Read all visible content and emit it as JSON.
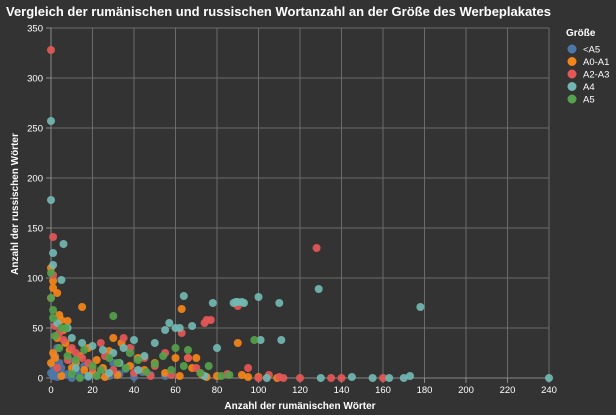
{
  "chart_data": {
    "type": "scatter",
    "title": "Vergleich der rumänischen und russischen Wortanzahl an der Größe des Werbeplakates",
    "xlabel": "Anzahl der rumänischen Wörter",
    "ylabel": "Anzahl der russischen Wörter",
    "xlim": [
      0,
      240
    ],
    "ylim": [
      0,
      350
    ],
    "x_ticks": [
      0,
      20,
      40,
      60,
      80,
      100,
      120,
      140,
      160,
      180,
      200,
      220,
      240
    ],
    "y_ticks": [
      0,
      50,
      100,
      150,
      200,
      250,
      300,
      350
    ],
    "grid": true,
    "legend": {
      "title": "Größe",
      "placement": "top-right",
      "entries": [
        {
          "name": "<A5",
          "color": "#4c78a8"
        },
        {
          "name": "A0-A1",
          "color": "#f58518"
        },
        {
          "name": "A2-A3",
          "color": "#e45756"
        },
        {
          "name": "A4",
          "color": "#72b7b2"
        },
        {
          "name": "A5",
          "color": "#54a24b"
        }
      ]
    },
    "series": [
      {
        "name": "<A5",
        "color": "#4c78a8",
        "points": [
          [
            1,
            2
          ],
          [
            2,
            6
          ],
          [
            3,
            1
          ],
          [
            5,
            10
          ],
          [
            6,
            3
          ],
          [
            8,
            4
          ],
          [
            10,
            0
          ],
          [
            12,
            7
          ],
          [
            14,
            2
          ],
          [
            16,
            12
          ],
          [
            18,
            1
          ],
          [
            20,
            5
          ],
          [
            22,
            3
          ],
          [
            25,
            8
          ],
          [
            28,
            2
          ],
          [
            30,
            15
          ],
          [
            33,
            4
          ],
          [
            36,
            9
          ],
          [
            40,
            1
          ],
          [
            44,
            6
          ],
          [
            48,
            3
          ],
          [
            55,
            2
          ],
          [
            2,
            22
          ],
          [
            4,
            15
          ],
          [
            9,
            18
          ],
          [
            1,
            12
          ],
          [
            0,
            5
          ],
          [
            3,
            30
          ]
        ]
      },
      {
        "name": "A0-A1",
        "color": "#f58518",
        "points": [
          [
            0,
            110
          ],
          [
            1,
            97
          ],
          [
            1,
            90
          ],
          [
            3,
            85
          ],
          [
            4,
            63
          ],
          [
            5,
            58
          ],
          [
            8,
            57
          ],
          [
            15,
            71
          ],
          [
            6,
            48
          ],
          [
            3,
            40
          ],
          [
            7,
            35
          ],
          [
            1,
            25
          ],
          [
            2,
            20
          ],
          [
            9,
            28
          ],
          [
            12,
            15
          ],
          [
            14,
            22
          ],
          [
            18,
            30
          ],
          [
            20,
            5
          ],
          [
            22,
            18
          ],
          [
            25,
            10
          ],
          [
            28,
            27
          ],
          [
            32,
            3
          ],
          [
            34,
            35
          ],
          [
            38,
            12
          ],
          [
            42,
            20
          ],
          [
            45,
            8
          ],
          [
            50,
            15
          ],
          [
            55,
            5
          ],
          [
            60,
            20
          ],
          [
            62,
            2
          ],
          [
            63,
            69
          ],
          [
            66,
            20
          ],
          [
            68,
            10
          ],
          [
            70,
            20
          ],
          [
            73,
            3
          ],
          [
            75,
            1
          ],
          [
            80,
            2
          ],
          [
            90,
            35
          ],
          [
            92,
            3
          ],
          [
            95,
            1
          ],
          [
            100,
            1
          ],
          [
            109,
            0
          ],
          [
            30,
            40
          ],
          [
            10,
            10
          ],
          [
            5,
            2
          ],
          [
            0,
            15
          ],
          [
            16,
            8
          ],
          [
            26,
            1
          ]
        ]
      },
      {
        "name": "A2-A3",
        "color": "#e45756",
        "points": [
          [
            0,
            328
          ],
          [
            1,
            141
          ],
          [
            1,
            103
          ],
          [
            0,
            80
          ],
          [
            2,
            52
          ],
          [
            4,
            45
          ],
          [
            6,
            38
          ],
          [
            10,
            30
          ],
          [
            12,
            25
          ],
          [
            15,
            20
          ],
          [
            18,
            15
          ],
          [
            20,
            10
          ],
          [
            24,
            35
          ],
          [
            26,
            22
          ],
          [
            30,
            8
          ],
          [
            35,
            40
          ],
          [
            38,
            30
          ],
          [
            40,
            5
          ],
          [
            45,
            20
          ],
          [
            50,
            12
          ],
          [
            55,
            25
          ],
          [
            58,
            3
          ],
          [
            63,
            45
          ],
          [
            66,
            20
          ],
          [
            70,
            10
          ],
          [
            72,
            5
          ],
          [
            74,
            55
          ],
          [
            75,
            58
          ],
          [
            77,
            58
          ],
          [
            90,
            72
          ],
          [
            95,
            10
          ],
          [
            105,
            3
          ],
          [
            110,
            1
          ],
          [
            112,
            0
          ],
          [
            120,
            0
          ],
          [
            128,
            130
          ],
          [
            135,
            0
          ],
          [
            140,
            0
          ],
          [
            160,
            0
          ],
          [
            8,
            18
          ],
          [
            3,
            10
          ],
          [
            48,
            2
          ],
          [
            85,
            4
          ],
          [
            100,
            0
          ]
        ]
      },
      {
        "name": "A4",
        "color": "#72b7b2",
        "points": [
          [
            0,
            257
          ],
          [
            0,
            178
          ],
          [
            1,
            125
          ],
          [
            1,
            113
          ],
          [
            6,
            134
          ],
          [
            5,
            98
          ],
          [
            3,
            55
          ],
          [
            8,
            50
          ],
          [
            10,
            40
          ],
          [
            15,
            35
          ],
          [
            20,
            32
          ],
          [
            25,
            28
          ],
          [
            30,
            25
          ],
          [
            35,
            30
          ],
          [
            40,
            38
          ],
          [
            45,
            22
          ],
          [
            50,
            35
          ],
          [
            55,
            48
          ],
          [
            57,
            55
          ],
          [
            60,
            50
          ],
          [
            62,
            50
          ],
          [
            64,
            82
          ],
          [
            68,
            52
          ],
          [
            74,
            2
          ],
          [
            78,
            75
          ],
          [
            80,
            30
          ],
          [
            88,
            75
          ],
          [
            89,
            76
          ],
          [
            90,
            76
          ],
          [
            92,
            76
          ],
          [
            93,
            75
          ],
          [
            100,
            81
          ],
          [
            101,
            38
          ],
          [
            104,
            0
          ],
          [
            110,
            75
          ],
          [
            111,
            38
          ],
          [
            129,
            89
          ],
          [
            130,
            0
          ],
          [
            145,
            1
          ],
          [
            155,
            0
          ],
          [
            163,
            0
          ],
          [
            170,
            0
          ],
          [
            173,
            2
          ],
          [
            178,
            71
          ],
          [
            240,
            0
          ],
          [
            12,
            10
          ],
          [
            28,
            5
          ],
          [
            42,
            8
          ],
          [
            18,
            2
          ],
          [
            33,
            15
          ]
        ]
      },
      {
        "name": "A5",
        "color": "#54a24b",
        "points": [
          [
            0,
            105
          ],
          [
            0,
            80
          ],
          [
            1,
            68
          ],
          [
            1,
            60
          ],
          [
            2,
            42
          ],
          [
            5,
            50
          ],
          [
            7,
            50
          ],
          [
            4,
            30
          ],
          [
            8,
            22
          ],
          [
            12,
            18
          ],
          [
            16,
            28
          ],
          [
            20,
            12
          ],
          [
            24,
            8
          ],
          [
            28,
            20
          ],
          [
            30,
            62
          ],
          [
            32,
            15
          ],
          [
            36,
            10
          ],
          [
            38,
            25
          ],
          [
            42,
            18
          ],
          [
            46,
            6
          ],
          [
            50,
            14
          ],
          [
            54,
            22
          ],
          [
            58,
            8
          ],
          [
            60,
            30
          ],
          [
            64,
            12
          ],
          [
            66,
            28
          ],
          [
            72,
            5
          ],
          [
            76,
            12
          ],
          [
            82,
            2
          ],
          [
            86,
            3
          ],
          [
            98,
            38
          ],
          [
            10,
            4
          ],
          [
            22,
            2
          ],
          [
            14,
            0
          ]
        ]
      }
    ]
  }
}
